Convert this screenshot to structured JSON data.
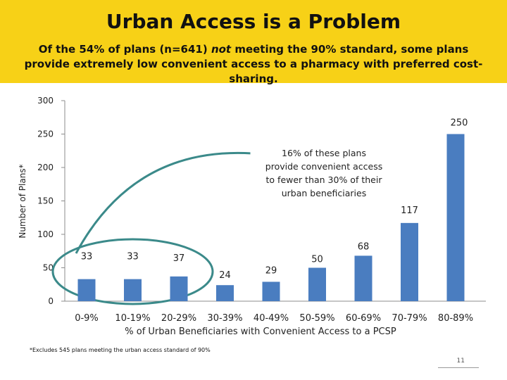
{
  "slide": {
    "title": "Urban Access is a Problem",
    "subtitle_pre": "Of the 54% of plans (n=641) ",
    "subtitle_em": "not",
    "subtitle_post": " meeting the 90% standard, some plans provide extremely low convenient access to a pharmacy with preferred cost-sharing.",
    "footnote": "*Excludes 545 plans meeting the urban access standard of 90%",
    "page_number": "11",
    "header_color": "#f7d117"
  },
  "chart_data": {
    "type": "bar",
    "categories": [
      "0-9%",
      "10-19%",
      "20-29%",
      "30-39%",
      "40-49%",
      "50-59%",
      "60-69%",
      "70-79%",
      "80-89%"
    ],
    "values": [
      33,
      33,
      37,
      24,
      29,
      50,
      68,
      117,
      250
    ],
    "xlabel": "% of Urban Beneficiaries with Convenient Access to a PCSP",
    "ylabel": "Number of Plans*",
    "ylim": [
      0,
      300
    ],
    "yticks": [
      0,
      50,
      100,
      150,
      200,
      250,
      300
    ],
    "grid": false,
    "legend": "none",
    "bar_color": "#4a7dc0",
    "annotation": {
      "text": "16% of these plans provide convenient access to fewer than 30% of their urban beneficiaries",
      "highlight_color": "#3b8a8a"
    }
  }
}
